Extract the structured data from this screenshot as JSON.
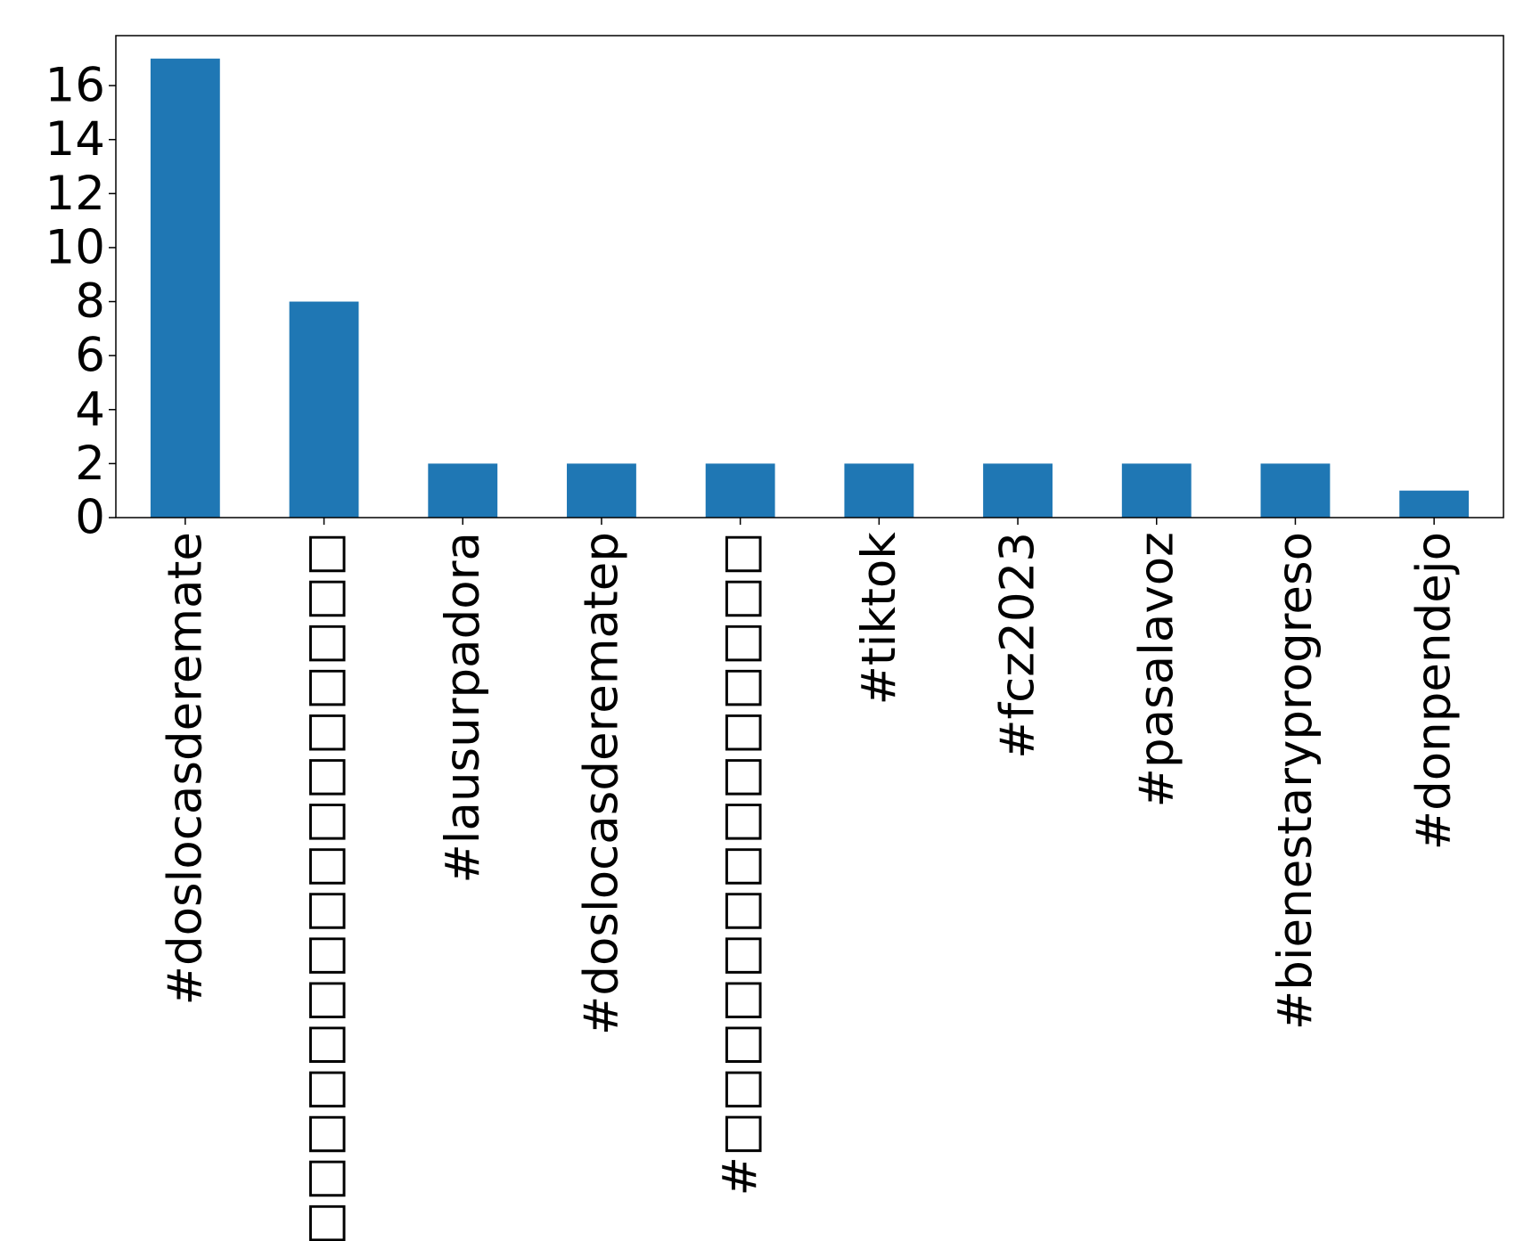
{
  "chart_data": {
    "type": "bar",
    "categories": [
      "#doslocasderemate",
      "#□□□□□□□□□□□□□□□□",
      "#lausurpadora",
      "#doslocasderematep",
      "#□□□□□□□□□□□□□□",
      "#tiktok",
      "#fcz2023",
      "#pasalavoz",
      "#bienestaryprogreso",
      "#donpendejo"
    ],
    "values": [
      17,
      8,
      2,
      2,
      2,
      2,
      2,
      2,
      2,
      1
    ],
    "color": "#1f77b4",
    "ylim": [
      0,
      17.85
    ],
    "yticks": [
      0,
      2,
      4,
      6,
      8,
      10,
      12,
      14,
      16
    ],
    "grid": false
  }
}
